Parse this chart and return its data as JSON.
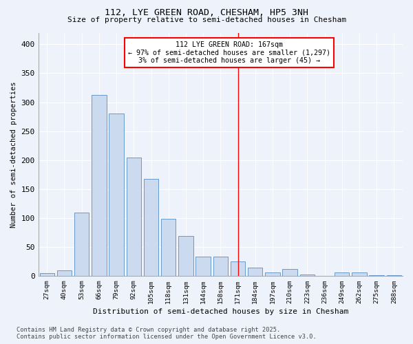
{
  "title1": "112, LYE GREEN ROAD, CHESHAM, HP5 3NH",
  "title2": "Size of property relative to semi-detached houses in Chesham",
  "xlabel": "Distribution of semi-detached houses by size in Chesham",
  "ylabel": "Number of semi-detached properties",
  "bar_labels": [
    "27sqm",
    "40sqm",
    "53sqm",
    "66sqm",
    "79sqm",
    "92sqm",
    "105sqm",
    "118sqm",
    "131sqm",
    "144sqm",
    "158sqm",
    "171sqm",
    "184sqm",
    "197sqm",
    "210sqm",
    "223sqm",
    "236sqm",
    "249sqm",
    "262sqm",
    "275sqm",
    "288sqm"
  ],
  "bar_values": [
    5,
    10,
    110,
    312,
    280,
    204,
    168,
    99,
    69,
    33,
    33,
    25,
    14,
    6,
    12,
    3,
    0,
    6,
    6,
    1,
    1
  ],
  "bar_color": "#ccdaf0",
  "bar_edgecolor": "#6699cc",
  "vline_index": 11,
  "vline_color": "red",
  "annotation_text": "112 LYE GREEN ROAD: 167sqm\n← 97% of semi-detached houses are smaller (1,297)\n3% of semi-detached houses are larger (45) →",
  "annotation_box_color": "white",
  "annotation_box_edgecolor": "red",
  "ylim": [
    0,
    420
  ],
  "yticks": [
    0,
    50,
    100,
    150,
    200,
    250,
    300,
    350,
    400
  ],
  "bg_color": "#eef2fa",
  "footer1": "Contains HM Land Registry data © Crown copyright and database right 2025.",
  "footer2": "Contains public sector information licensed under the Open Government Licence v3.0."
}
